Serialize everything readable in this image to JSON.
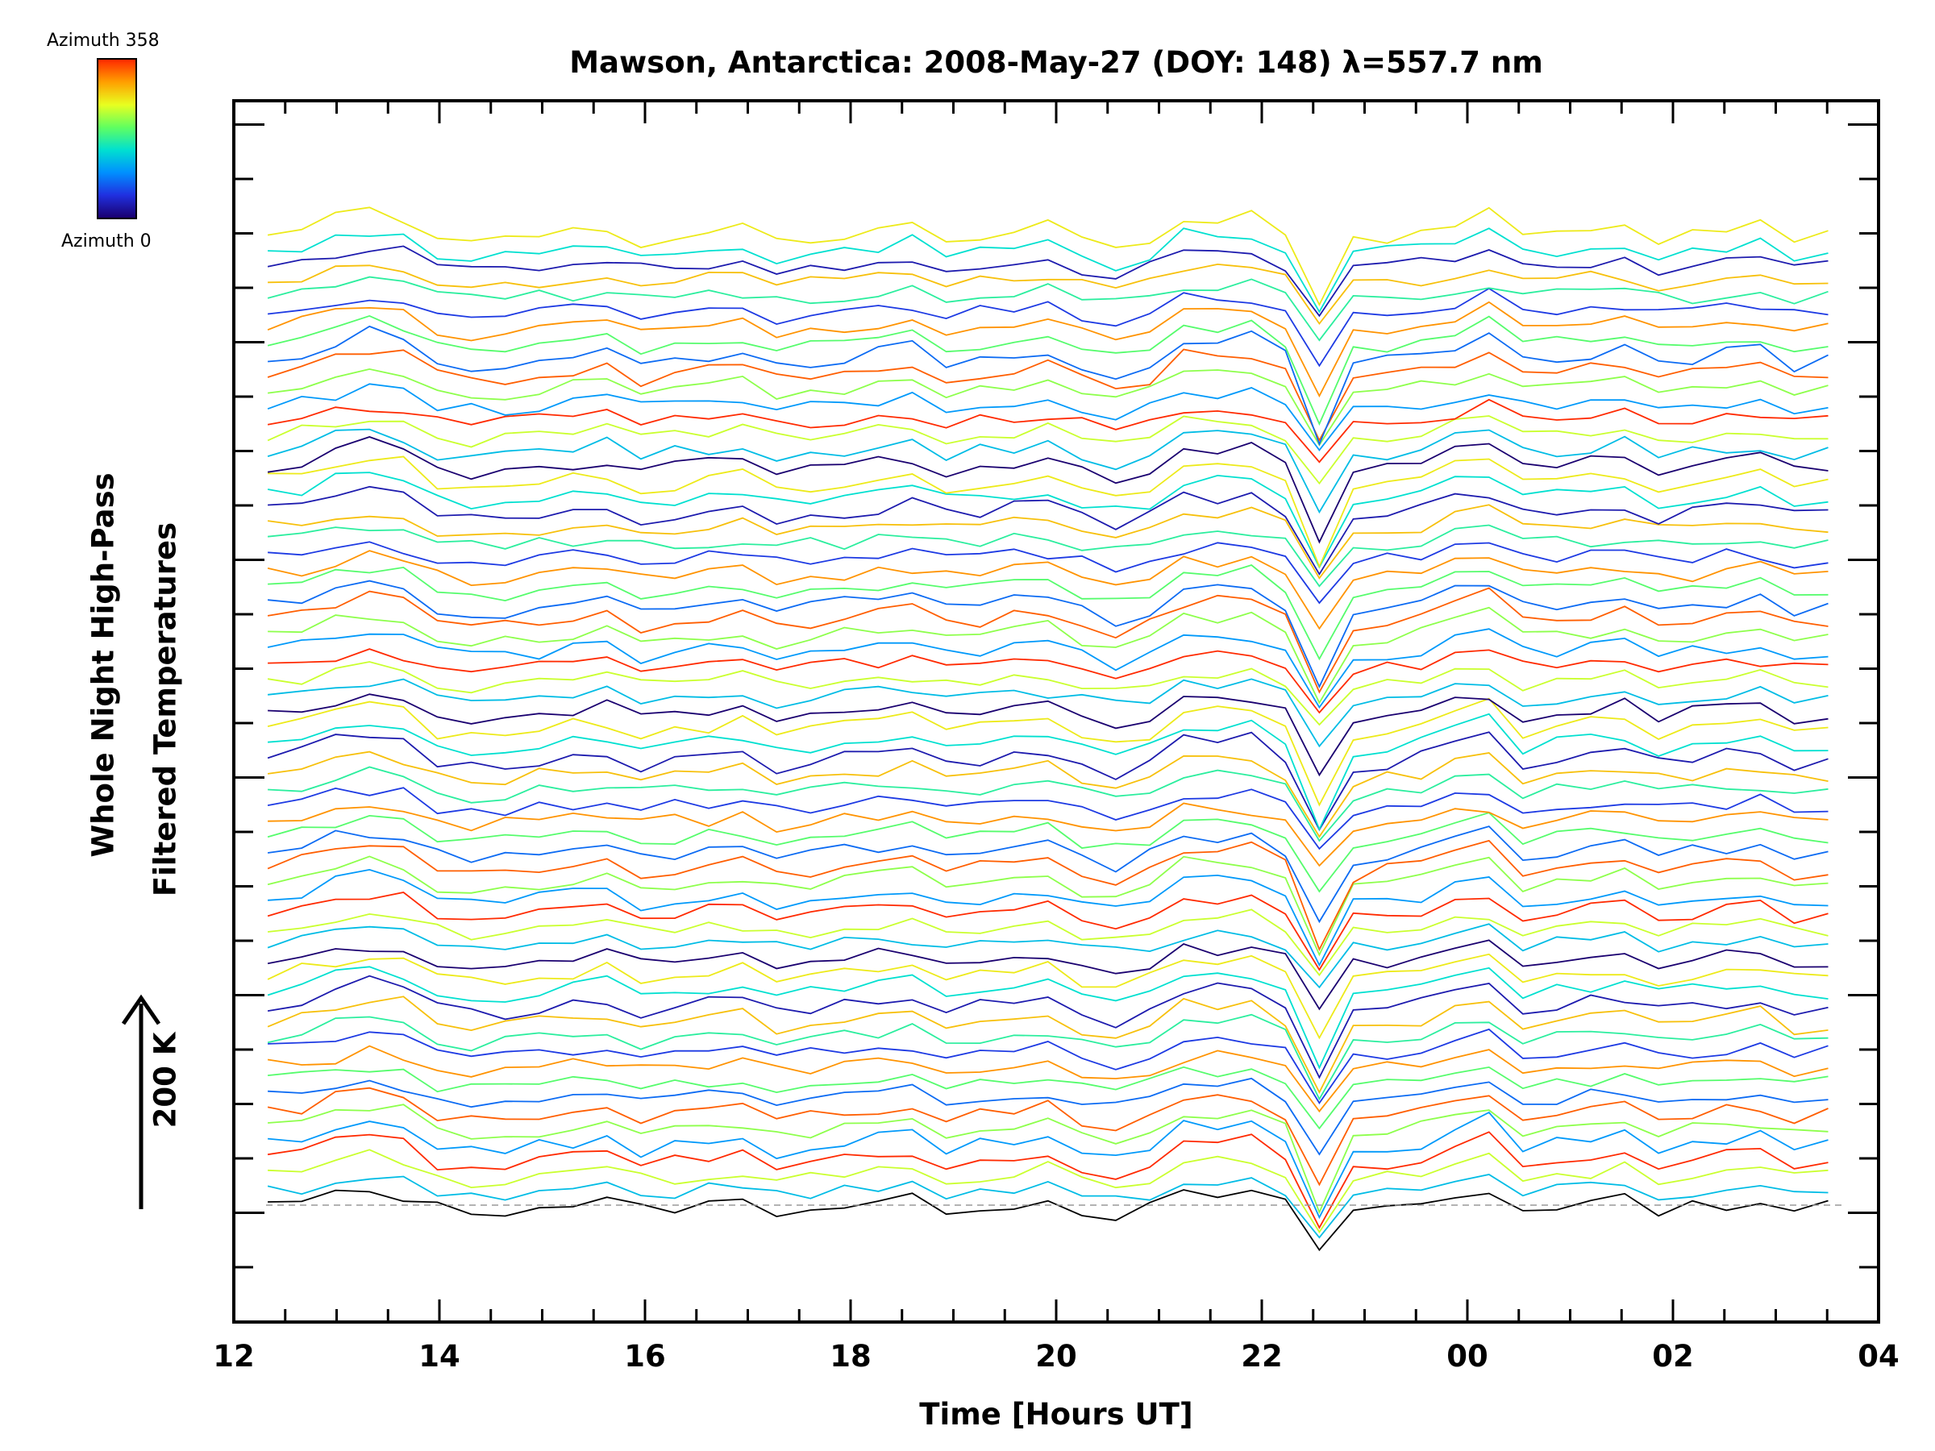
{
  "chart_data": {
    "type": "line",
    "title": "Mawson, Antarctica: 2008-May-27 (DOY: 148) λ=557.7 nm",
    "xlabel": "Time [Hours UT]",
    "ylabel": [
      "Whole Night High-Pass",
      "Filtered Temperatures"
    ],
    "scale_bar_label": "200 K",
    "colorbar": {
      "max_label": "Azimuth 358",
      "min_label": "Azimuth 0"
    },
    "x_ticks": [
      "12",
      "14",
      "16",
      "18",
      "20",
      "22",
      "00",
      "02",
      "04"
    ],
    "xlim_hours": [
      12,
      28
    ],
    "series_count": 64,
    "series_start_hour": 12.33,
    "series_end_hour": 27.67,
    "series_step_hours": 0.33,
    "key_features": [
      {
        "feature": "sharp temperature dip across all series",
        "hour": 22.5
      },
      {
        "feature": "secondary peak",
        "hour": 13.4
      },
      {
        "feature": "local minimum",
        "hour": 14.2
      },
      {
        "feature": "pre-dip maximum",
        "hour": 21.7
      },
      {
        "feature": "post-dip peak",
        "hour": 24.1
      }
    ],
    "grid": false,
    "baseline": "dashed grey line at lowest series zero"
  }
}
